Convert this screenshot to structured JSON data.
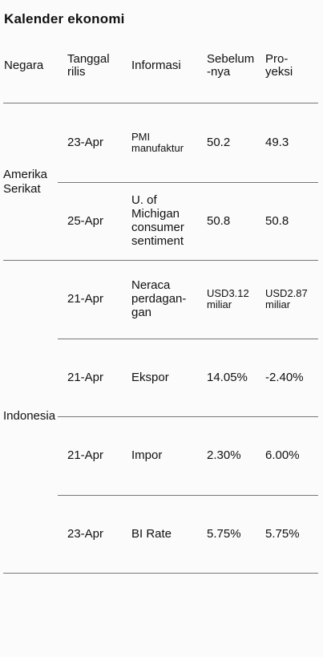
{
  "title": "Kalender ekonomi",
  "headers": {
    "negara": "Negara",
    "tanggal": [
      "Tanggal",
      "rilis"
    ],
    "informasi": "Informasi",
    "sebelumnya": [
      "Sebelum",
      "-nya"
    ],
    "proyeksi": [
      "Pro-",
      "yeksi"
    ]
  },
  "groups": [
    {
      "country": [
        "Amerika",
        "Serikat"
      ],
      "rows": [
        {
          "date": "23-Apr",
          "info": [
            "PMI",
            "manufaktur"
          ],
          "prev": [
            "50.2"
          ],
          "proj": [
            "49.3"
          ]
        },
        {
          "date": "25-Apr",
          "info": [
            "U. of",
            "Michigan",
            "consumer",
            "sentiment"
          ],
          "prev": [
            "50.8"
          ],
          "proj": [
            "50.8"
          ]
        }
      ]
    },
    {
      "country": [
        "Indonesia"
      ],
      "rows": [
        {
          "date": "21-Apr",
          "info": [
            "Neraca",
            "perdagan-",
            "gan"
          ],
          "prev": [
            "USD3.12",
            "miliar"
          ],
          "proj": [
            "USD2.87",
            "miliar"
          ]
        },
        {
          "date": "21-Apr",
          "info": [
            "Ekspor"
          ],
          "prev": [
            "14.05%"
          ],
          "proj": [
            "-2.40%"
          ]
        },
        {
          "date": "21-Apr",
          "info": [
            "Impor"
          ],
          "prev": [
            "2.30%"
          ],
          "proj": [
            "6.00%"
          ]
        },
        {
          "date": "23-Apr",
          "info": [
            "BI Rate"
          ],
          "prev": [
            "5.75%"
          ],
          "proj": [
            "5.75%"
          ]
        }
      ]
    }
  ]
}
